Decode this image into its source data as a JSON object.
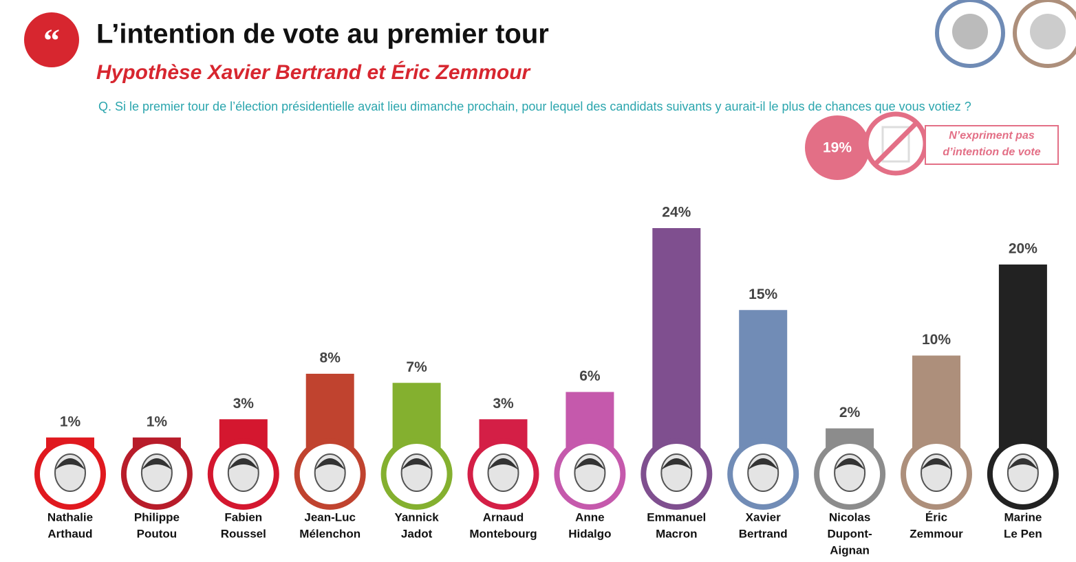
{
  "chart_data": {
    "type": "bar",
    "title": "L’intention de vote au premier tour",
    "subtitle": "Hypothèse Xavier Bertrand et Éric Zemmour",
    "question": "Q. Si le premier tour de l’élection présidentielle avait lieu dimanche prochain, pour lequel des candidats suivants y aurait-il le plus de chances que vous votiez ?",
    "abstention_label": "19%",
    "abstention_text": "N’expriment pas d’intention de vote",
    "categories": [
      [
        "Nathalie",
        "Arthaud"
      ],
      [
        "Philippe",
        "Poutou"
      ],
      [
        "Fabien",
        "Roussel"
      ],
      [
        "Jean-Luc",
        "Mélenchon"
      ],
      [
        "Yannick",
        "Jadot"
      ],
      [
        "Arnaud",
        "Montebourg"
      ],
      [
        "Anne",
        "Hidalgo"
      ],
      [
        "Emmanuel",
        "Macron"
      ],
      [
        "Xavier",
        "Bertrand"
      ],
      [
        "Nicolas",
        "Dupont-",
        "Aignan"
      ],
      [
        "Éric",
        "Zemmour"
      ],
      [
        "Marine",
        "Le Pen"
      ]
    ],
    "values": [
      1,
      1,
      3,
      8,
      7,
      3,
      6,
      24,
      15,
      2,
      10,
      20
    ],
    "value_labels": [
      "1%",
      "1%",
      "3%",
      "8%",
      "7%",
      "3%",
      "6%",
      "24%",
      "15%",
      "2%",
      "10%",
      "20%"
    ],
    "colors": [
      "#e0191f",
      "#b81c2a",
      "#d4172f",
      "#c0432f",
      "#84b02f",
      "#d41f46",
      "#c559ac",
      "#7f4f8f",
      "#718cb6",
      "#8c8c8c",
      "#ad8f7b",
      "#222222"
    ]
  }
}
